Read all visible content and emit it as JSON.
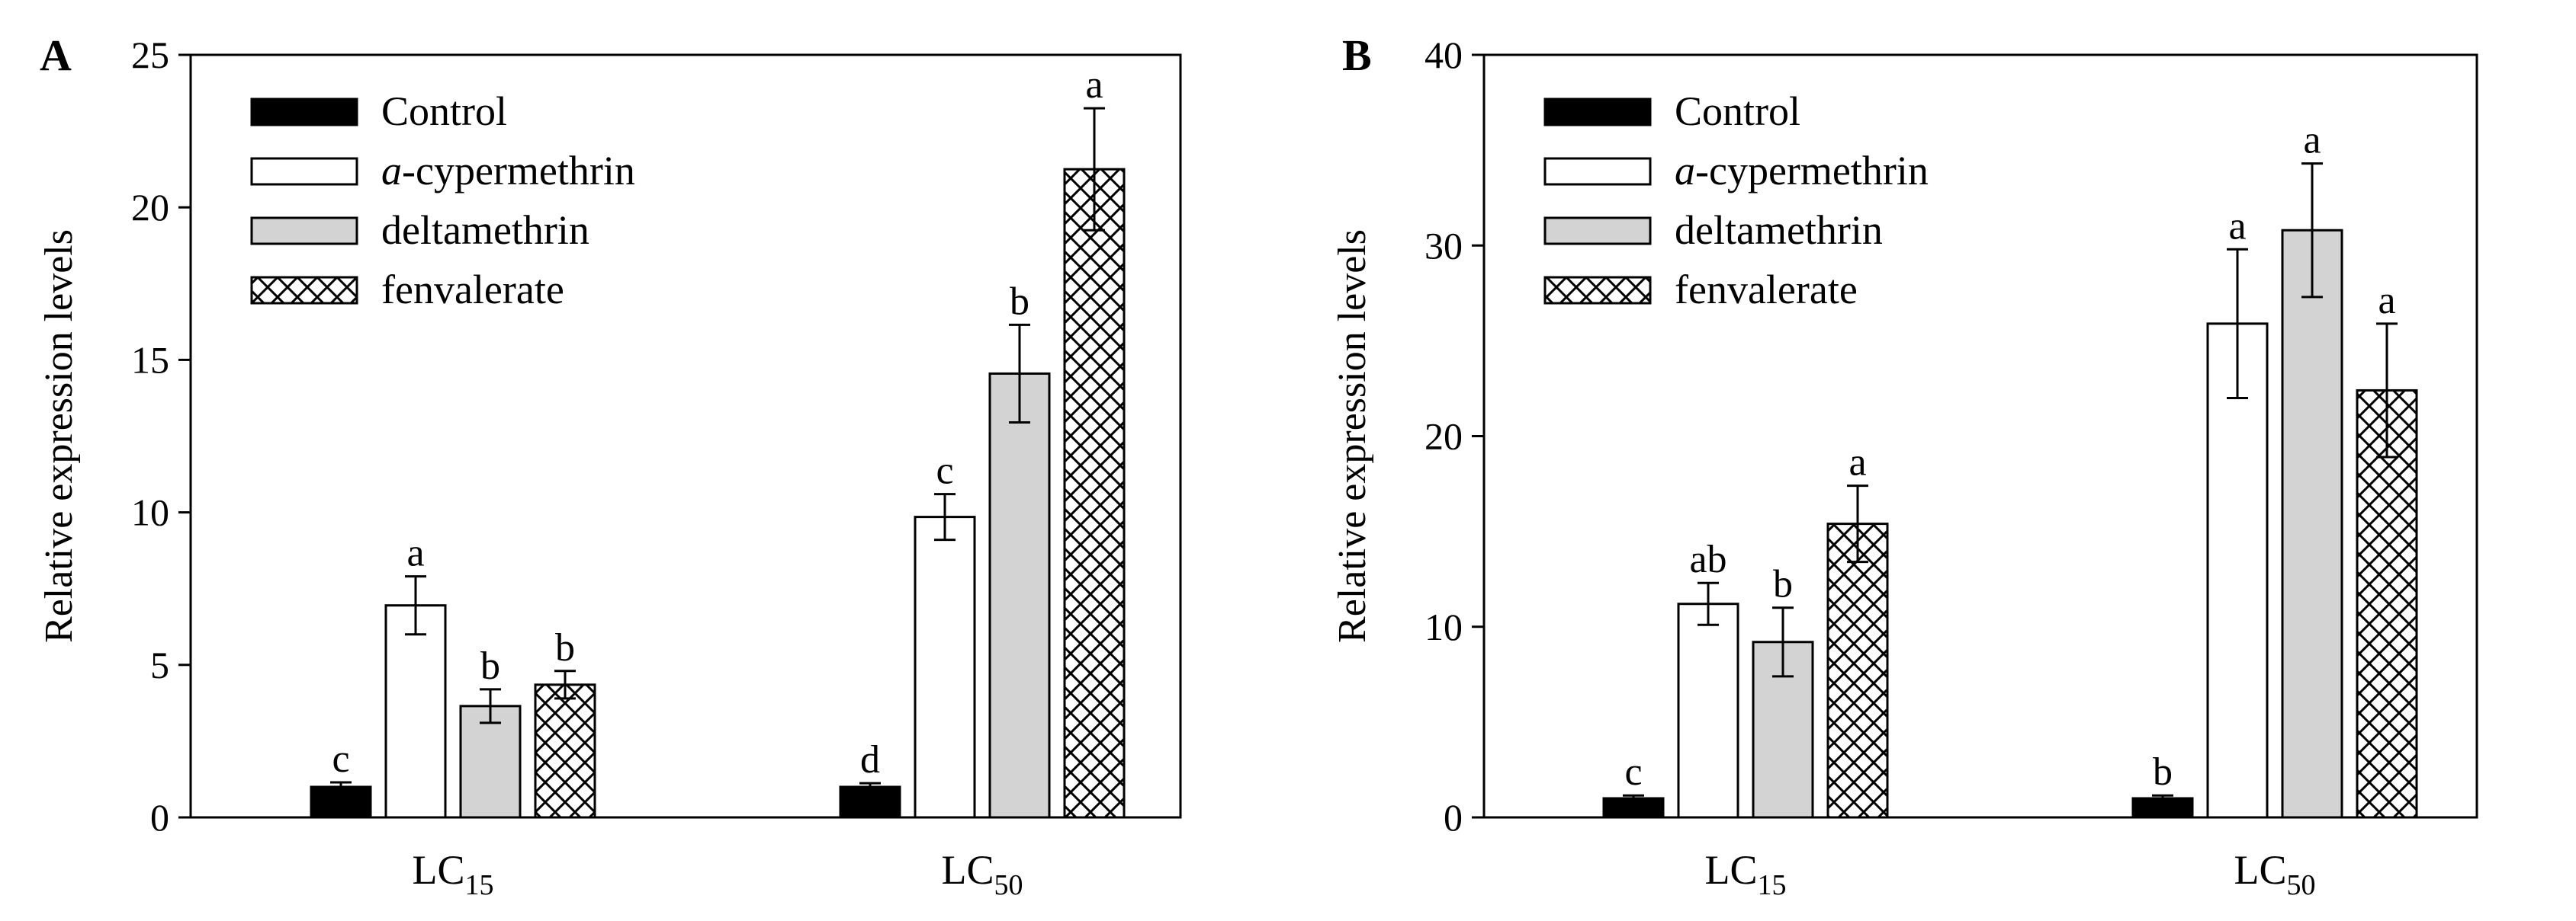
{
  "figure": {
    "legend_entries": [
      {
        "label": "Control",
        "prefix": "",
        "fill": "black"
      },
      {
        "label": "-cypermethrin",
        "prefix": "a",
        "fill": "white"
      },
      {
        "label": "deltamethrin",
        "prefix": "",
        "fill": "gray"
      },
      {
        "label": "fenvalerate",
        "prefix": "",
        "fill": "hatch"
      }
    ],
    "colors": {
      "control": "#000000",
      "cypermethrin": "#ffffff",
      "deltamethrin": "#d3d3d3",
      "hatch_stroke": "#000000"
    }
  },
  "chart_data": [
    {
      "panel_label": "A",
      "type": "bar",
      "ylabel": "Relative expression levels",
      "ylim": [
        0,
        25
      ],
      "yticks": [
        0,
        5,
        10,
        15,
        20,
        25
      ],
      "groups": [
        {
          "base": "LC",
          "sub": "15"
        },
        {
          "base": "LC",
          "sub": "50"
        }
      ],
      "series": [
        {
          "name": "Control",
          "values": [
            1.0,
            1.0
          ],
          "errors": [
            0.15,
            0.12
          ],
          "letters": [
            "c",
            "d"
          ]
        },
        {
          "name": "a-cypermethrin",
          "values": [
            6.95,
            9.85
          ],
          "errors": [
            0.95,
            0.75
          ],
          "letters": [
            "a",
            "c"
          ]
        },
        {
          "name": "deltamethrin",
          "values": [
            3.65,
            14.55
          ],
          "errors": [
            0.55,
            1.6
          ],
          "letters": [
            "b",
            "b"
          ]
        },
        {
          "name": "fenvalerate",
          "values": [
            4.35,
            21.25
          ],
          "errors": [
            0.45,
            2.0
          ],
          "letters": [
            "b",
            "a"
          ]
        }
      ]
    },
    {
      "panel_label": "B",
      "type": "bar",
      "ylabel": "Relative expression levels",
      "ylim": [
        0,
        40
      ],
      "yticks": [
        0,
        10,
        20,
        30,
        40
      ],
      "groups": [
        {
          "base": "LC",
          "sub": "15"
        },
        {
          "base": "LC",
          "sub": "50"
        }
      ],
      "series": [
        {
          "name": "Control",
          "values": [
            1.0,
            1.0
          ],
          "errors": [
            0.15,
            0.15
          ],
          "letters": [
            "c",
            "b"
          ]
        },
        {
          "name": "a-cypermethrin",
          "values": [
            11.2,
            25.9
          ],
          "errors": [
            1.1,
            3.9
          ],
          "letters": [
            "ab",
            "a"
          ]
        },
        {
          "name": "deltamethrin",
          "values": [
            9.2,
            30.8
          ],
          "errors": [
            1.8,
            3.5
          ],
          "letters": [
            "b",
            "a"
          ]
        },
        {
          "name": "fenvalerate",
          "values": [
            15.4,
            22.4
          ],
          "errors": [
            2.0,
            3.5
          ],
          "letters": [
            "a",
            "a"
          ]
        }
      ]
    }
  ]
}
